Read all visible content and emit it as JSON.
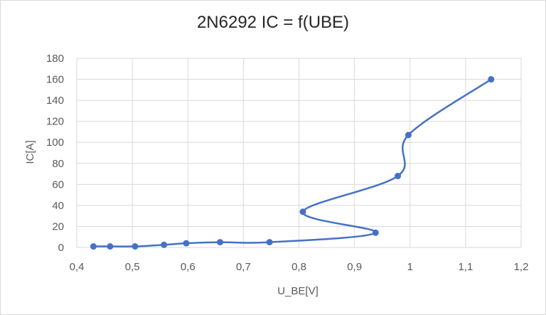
{
  "chart_data": {
    "type": "scatter",
    "title": "2N6292 IC = f(UBE)",
    "xlabel": "U_BE[V]",
    "ylabel": "IC[A]",
    "xlim": [
      0.4,
      1.2
    ],
    "ylim": [
      0,
      180
    ],
    "x_ticks": [
      "0,4",
      "0,5",
      "0,6",
      "0,7",
      "0,8",
      "0,9",
      "1",
      "1,1",
      "1,2"
    ],
    "y_ticks": [
      "0",
      "20",
      "40",
      "60",
      "80",
      "100",
      "120",
      "140",
      "160",
      "180"
    ],
    "grid": true,
    "smoothed_line": true,
    "series_color": "#4472c4",
    "series": [
      {
        "points": [
          {
            "x": 0.43,
            "y": 1
          },
          {
            "x": 0.46,
            "y": 1
          },
          {
            "x": 0.505,
            "y": 1
          },
          {
            "x": 0.557,
            "y": 2.5
          },
          {
            "x": 0.597,
            "y": 4
          },
          {
            "x": 0.658,
            "y": 5
          },
          {
            "x": 0.747,
            "y": 5
          },
          {
            "x": 0.938,
            "y": 14
          },
          {
            "x": 0.807,
            "y": 34
          },
          {
            "x": 0.978,
            "y": 68
          },
          {
            "x": 0.997,
            "y": 107
          },
          {
            "x": 1.146,
            "y": 160
          }
        ]
      }
    ]
  }
}
